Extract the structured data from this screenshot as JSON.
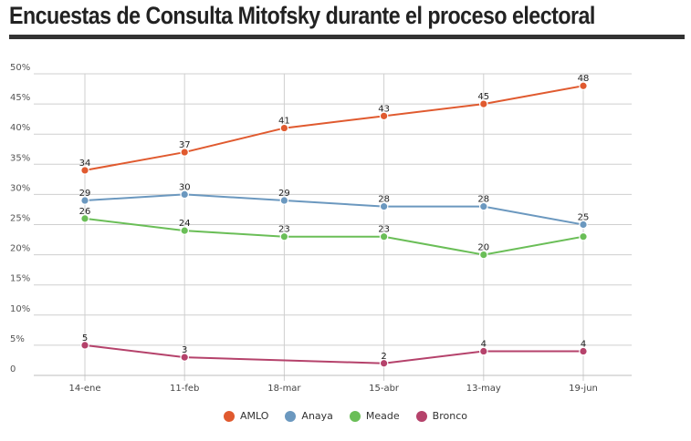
{
  "title": "Encuestas de Consulta Mitofsky durante el proceso electoral",
  "chart_data": {
    "type": "line",
    "title": "",
    "xlabel": "",
    "ylabel": "",
    "categories": [
      "14-ene",
      "11-feb",
      "18-mar",
      "15-abr",
      "13-may",
      "19-jun"
    ],
    "ylim": [
      0,
      50
    ],
    "yticks": [
      0,
      5,
      10,
      15,
      20,
      25,
      30,
      35,
      40,
      45,
      50
    ],
    "ytick_labels": [
      "0",
      "5%",
      "10%",
      "15%",
      "20%",
      "25%",
      "30%",
      "35%",
      "40%",
      "45%",
      "50%"
    ],
    "grid": true,
    "legend_position": "bottom-center",
    "series": [
      {
        "name": "AMLO",
        "color": "#e05a2f",
        "values": [
          34,
          37,
          41,
          43,
          45,
          48
        ],
        "labels": [
          "34",
          "37",
          "41",
          "43",
          "45",
          "48"
        ]
      },
      {
        "name": "Anaya",
        "color": "#6b98bf",
        "values": [
          29,
          30,
          29,
          28,
          28,
          25
        ],
        "labels": [
          "29",
          "30",
          "29",
          "28",
          "28",
          "25"
        ]
      },
      {
        "name": "Meade",
        "color": "#6abe57",
        "values": [
          26,
          24,
          23,
          23,
          20,
          23
        ],
        "labels": [
          "26",
          "24",
          "23",
          "23",
          "20",
          ""
        ]
      },
      {
        "name": "Bronco",
        "color": "#b5426b",
        "values": [
          5,
          3,
          null,
          2,
          4,
          4
        ],
        "labels": [
          "5",
          "3",
          "",
          "2",
          "4",
          "4"
        ]
      }
    ]
  }
}
